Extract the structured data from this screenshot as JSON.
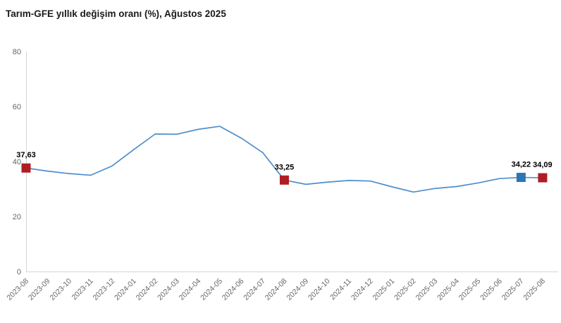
{
  "title": "Tarım-GFE yıllık değişim oranı (%), Ağustos 2025",
  "chart_data": {
    "type": "line",
    "title": "Tarım-GFE yıllık değişim oranı (%), Ağustos 2025",
    "categories": [
      "2023-08",
      "2023-09",
      "2023-10",
      "2023-11",
      "2023-12",
      "2024-01",
      "2024-02",
      "2024-03",
      "2024-04",
      "2024-05",
      "2024-06",
      "2024-07",
      "2024-08",
      "2024-09",
      "2024-10",
      "2024-11",
      "2024-12",
      "2025-01",
      "2025-02",
      "2025-03",
      "2025-04",
      "2025-05",
      "2025-06",
      "2025-07",
      "2025-08"
    ],
    "values": [
      37.63,
      36.5,
      35.6,
      35.0,
      38.4,
      44.3,
      50.0,
      49.9,
      51.7,
      52.8,
      48.5,
      43.2,
      33.25,
      31.7,
      32.5,
      33.1,
      32.9,
      30.8,
      28.9,
      30.2,
      30.9,
      32.2,
      33.8,
      34.22,
      34.09
    ],
    "xlabel": "",
    "ylabel": "",
    "ylim": [
      0,
      80
    ],
    "yticks": [
      0,
      20,
      40,
      60,
      80
    ],
    "grid": false,
    "legend_position": "none",
    "line_color": "#4e8ecb",
    "axis_color": "#d6d6d6",
    "tick_label_color": "#666666",
    "labeled_points": [
      {
        "category": "2023-08",
        "index": 0,
        "value": 37.63,
        "label": "37,63",
        "marker_color": "#ae1e24",
        "marker_shape": "square"
      },
      {
        "category": "2024-08",
        "index": 12,
        "value": 33.25,
        "label": "33,25",
        "marker_color": "#ae1e24",
        "marker_shape": "square"
      },
      {
        "category": "2025-07",
        "index": 23,
        "value": 34.22,
        "label": "34,22",
        "marker_color": "#2e75b6",
        "marker_shape": "square"
      },
      {
        "category": "2025-08",
        "index": 24,
        "value": 34.09,
        "label": "34,09",
        "marker_color": "#ae1e24",
        "marker_shape": "square"
      }
    ]
  }
}
